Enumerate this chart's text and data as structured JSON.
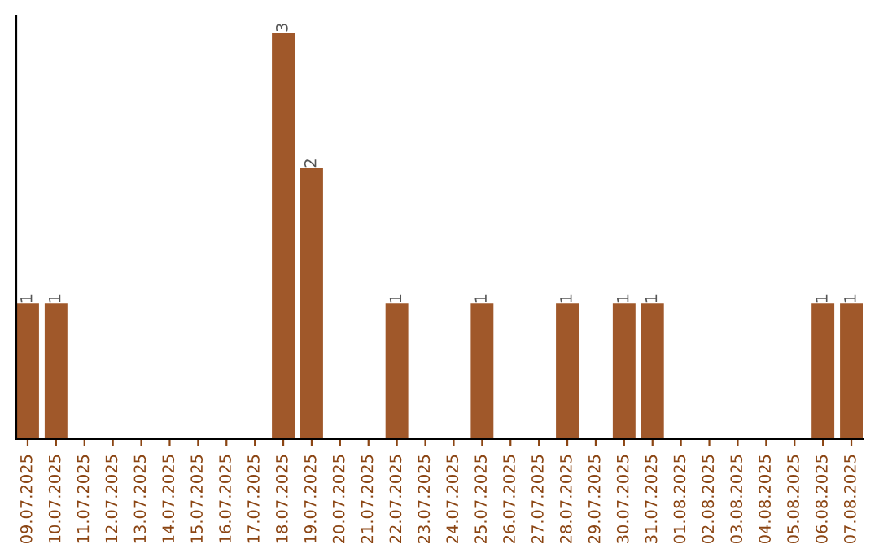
{
  "chart_data": {
    "type": "bar",
    "categories": [
      "09.07.2025",
      "10.07.2025",
      "11.07.2025",
      "12.07.2025",
      "13.07.2025",
      "14.07.2025",
      "15.07.2025",
      "16.07.2025",
      "17.07.2025",
      "18.07.2025",
      "19.07.2025",
      "20.07.2025",
      "21.07.2025",
      "22.07.2025",
      "23.07.2025",
      "24.07.2025",
      "25.07.2025",
      "26.07.2025",
      "27.07.2025",
      "28.07.2025",
      "29.07.2025",
      "30.07.2025",
      "31.07.2025",
      "01.08.2025",
      "02.08.2025",
      "03.08.2025",
      "04.08.2025",
      "05.08.2025",
      "06.08.2025",
      "07.08.2025"
    ],
    "values": [
      1,
      1,
      0,
      0,
      0,
      0,
      0,
      0,
      0,
      3,
      2,
      0,
      0,
      1,
      0,
      0,
      1,
      0,
      0,
      1,
      0,
      1,
      1,
      0,
      0,
      0,
      0,
      0,
      1,
      1
    ],
    "value_labels": [
      "1",
      "1",
      null,
      null,
      null,
      null,
      null,
      null,
      null,
      "3",
      "2",
      null,
      null,
      "1",
      null,
      null,
      "1",
      null,
      null,
      "1",
      null,
      "1",
      "1",
      null,
      null,
      null,
      null,
      null,
      "1",
      "1"
    ],
    "color": "#a0582a",
    "tick_labels": "x",
    "grid": false,
    "legend": false
  }
}
